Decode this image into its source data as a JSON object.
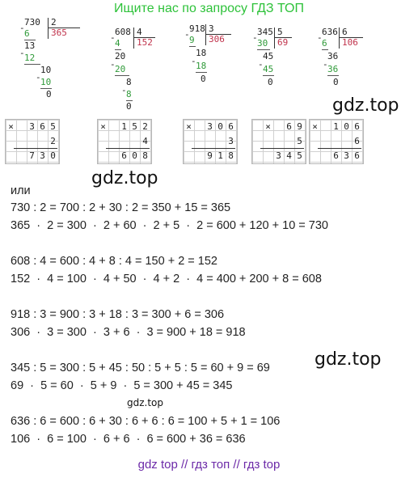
{
  "header": "Ищите нас по запросу ГДЗ ТОП",
  "watermarks": {
    "w1": "gdz.top",
    "w2": "gdz.top",
    "w3": "gdz.top",
    "w4": "gdz.top"
  },
  "divisions": [
    {
      "dividend": "730",
      "divisor": "2",
      "quotient": "365",
      "steps": [
        {
          "sub": "6",
          "rem": "13"
        },
        {
          "sub": "12",
          "rem": "10"
        },
        {
          "sub": "10",
          "rem": "0"
        }
      ]
    },
    {
      "dividend": "608",
      "divisor": "4",
      "quotient": "152",
      "steps": [
        {
          "sub": "4",
          "rem": "20"
        },
        {
          "sub": "20",
          "rem": "8"
        },
        {
          "sub": "8",
          "rem": "0"
        }
      ]
    },
    {
      "dividend": "918",
      "divisor": "3",
      "quotient": "306",
      "steps": [
        {
          "sub": "9",
          "rem": "18"
        },
        {
          "sub": "18",
          "rem": "0"
        }
      ]
    },
    {
      "dividend": "345",
      "divisor": "5",
      "quotient": "69",
      "steps": [
        {
          "sub": "30",
          "rem": "45"
        },
        {
          "sub": "45",
          "rem": "0"
        }
      ]
    },
    {
      "dividend": "636",
      "divisor": "6",
      "quotient": "106",
      "steps": [
        {
          "sub": "6",
          "rem": "36"
        },
        {
          "sub": "36",
          "rem": "0"
        }
      ]
    }
  ],
  "mults": [
    {
      "top": [
        "3",
        "6",
        "5"
      ],
      "mult": "2",
      "result": [
        "7",
        "3",
        "0"
      ]
    },
    {
      "top": [
        "1",
        "5",
        "2"
      ],
      "mult": "4",
      "result": [
        "6",
        "0",
        "8"
      ]
    },
    {
      "top": [
        "3",
        "0",
        "6"
      ],
      "mult": "3",
      "result": [
        "9",
        "1",
        "8"
      ]
    },
    {
      "top": [
        "6",
        "9"
      ],
      "mult": "5",
      "result": [
        "3",
        "4",
        "5"
      ]
    },
    {
      "top": [
        "1",
        "0",
        "6"
      ],
      "mult": "6",
      "result": [
        "6",
        "3",
        "6"
      ]
    }
  ],
  "times_sign": "×",
  "minus_sign": "-",
  "ili": "или",
  "lines": [
    "730 : 2 = 700 : 2 + 30 : 2 = 350 + 15 = 365",
    "365  ·  2 = 300  ·  2 + 60  ·  2 + 5  ·  2 = 600 + 120 + 10 = 730",
    "608 : 4 = 600 : 4 + 8 : 4 = 150 + 2 = 152",
    "152  ·  4 = 100  ·  4 + 50  ·  4 + 2  ·  4 = 400 + 200 + 8 = 608",
    "918 : 3 = 900 : 3 + 18 : 3 = 300 + 6 = 306",
    "306  ·  3 = 300  ·  3 + 6  ·  3 = 900 + 18 = 918",
    "345 : 5 = 300 : 5 + 45 : 50 : 5 + 5 : 5 = 60 + 9 = 69",
    "69  ·  5 = 60  ·  5 + 9  ·  5 = 300 + 45 = 345",
    "636 : 6 = 600 : 6 + 30 : 6 + 6 : 6 = 100 + 5 + 1 = 106",
    "106  ·  6 = 100  ·  6 + 6  ·  6 = 600 + 36 = 636"
  ],
  "footer": "gdz top  //  гдз топ  //  гдз top"
}
